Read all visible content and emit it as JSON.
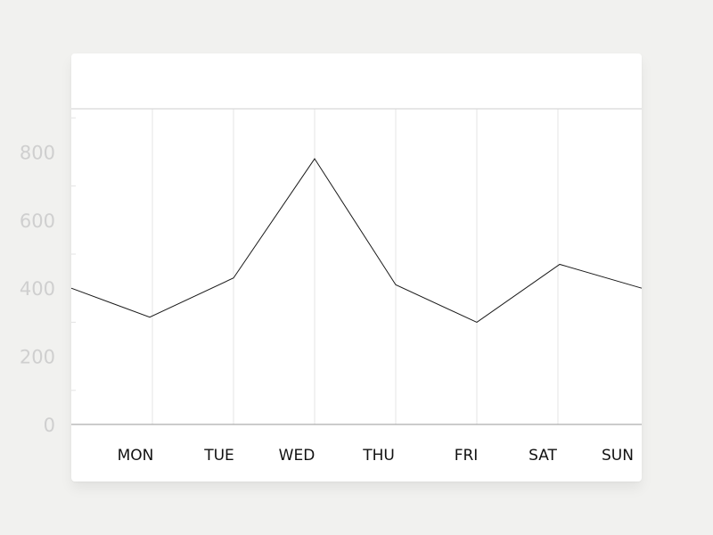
{
  "chart_data": {
    "type": "line",
    "categories": [
      "MON",
      "TUE",
      "WED",
      "THU",
      "FRI",
      "SAT",
      "SUN"
    ],
    "series": [
      {
        "values": [
          315,
          430,
          780,
          410,
          300,
          470,
          400
        ]
      }
    ],
    "start_value": 400,
    "y_ticks": [
      "800",
      "600",
      "400",
      "200",
      "0"
    ],
    "ylim": [
      0,
      930
    ],
    "grid": "vertical",
    "colors": {
      "line": "#1a1a1a",
      "grid": "#e6e6e6",
      "axis": "#9a9a9a",
      "ytick": "#cfcfcf",
      "xtick": "#111111"
    }
  }
}
